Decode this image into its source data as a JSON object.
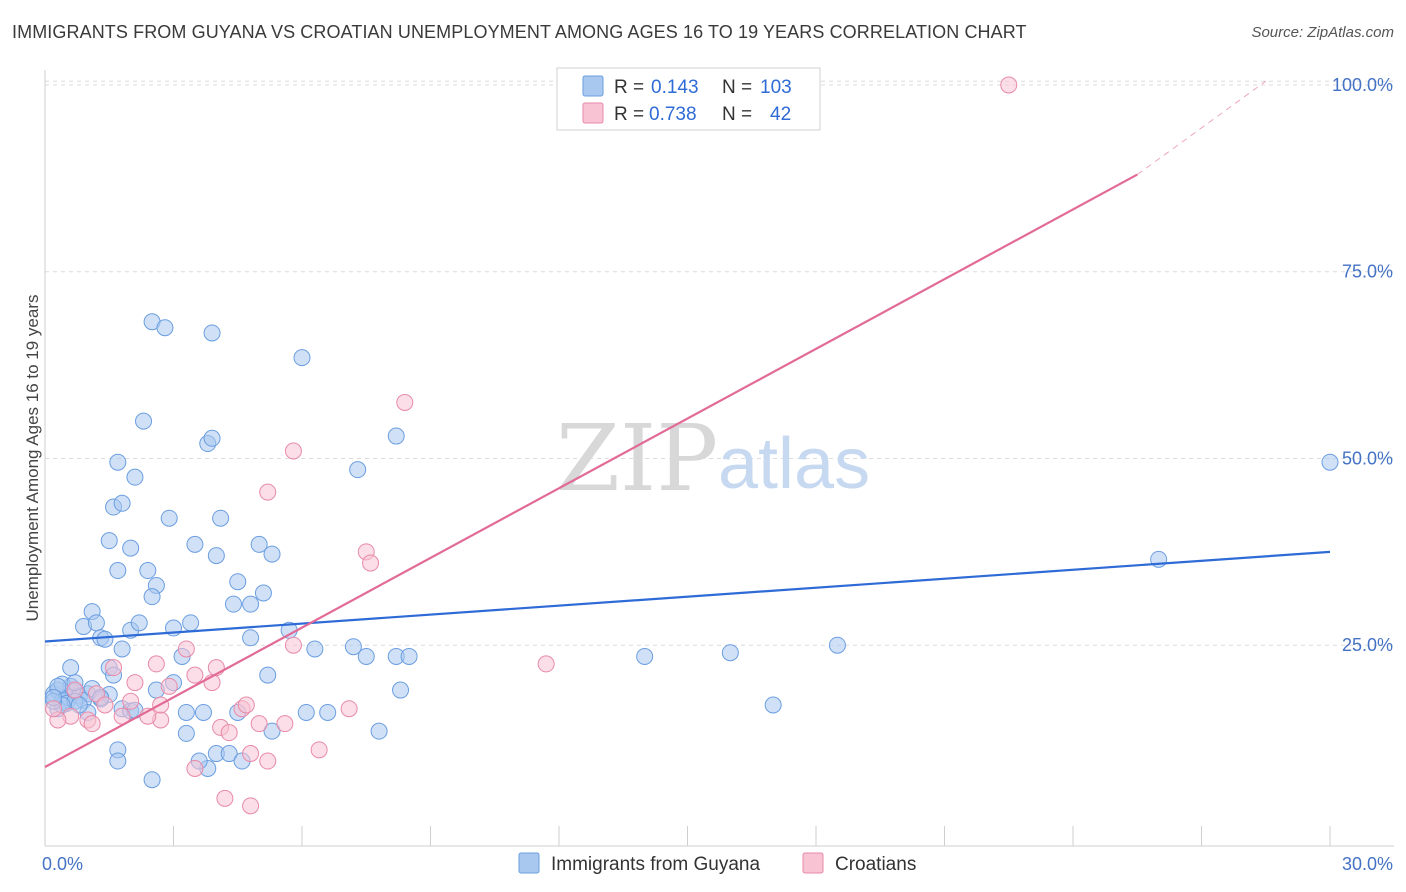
{
  "title": "IMMIGRANTS FROM GUYANA VS CROATIAN UNEMPLOYMENT AMONG AGES 16 TO 19 YEARS CORRELATION CHART",
  "source": "Source: ZipAtlas.com",
  "watermark": {
    "zip": "ZIP",
    "atlas": "atlas"
  },
  "legend": {
    "rows": [
      {
        "r_label": "R =",
        "r_value": "0.143",
        "n_label": "N =",
        "n_value": "103",
        "color": "#a9c8f0",
        "border": "#6b9ee0"
      },
      {
        "r_label": "R =",
        "r_value": "0.738",
        "n_label": "N =",
        "n_value": "42",
        "color": "#f8c3d3",
        "border": "#e88aa8"
      }
    ]
  },
  "bottom_legend": [
    "Immigrants from Guyana",
    "Croatians"
  ],
  "chart_data": {
    "type": "scatter",
    "title": "IMMIGRANTS FROM GUYANA VS CROATIAN UNEMPLOYMENT AMONG AGES 16 TO 19 YEARS CORRELATION CHART",
    "xlabel": "",
    "ylabel": "Unemployment Among Ages 16 to 19 years",
    "xlim": [
      0,
      30
    ],
    "ylim": [
      0,
      102
    ],
    "x_tick_labels": [
      {
        "value": 0,
        "label": "0.0%"
      },
      {
        "value": 30,
        "label": "30.0%"
      }
    ],
    "x_minor_ticks": [
      0,
      3,
      6,
      9,
      12,
      15,
      18,
      21,
      24,
      27,
      30
    ],
    "y_ticks": [
      {
        "value": 25,
        "label": "25.0%"
      },
      {
        "value": 50,
        "label": "50.0%"
      },
      {
        "value": 75,
        "label": "75.0%"
      },
      {
        "value": 100,
        "label": "100.0%"
      }
    ],
    "series": [
      {
        "name": "Immigrants from Guyana",
        "color": "#a9c8f0",
        "stroke": "#6b9ee0",
        "line_color": "#2e6bd6",
        "trend": {
          "x0": 0,
          "y0": 25.5,
          "x1": 30,
          "y1": 37.5
        },
        "points": [
          [
            0.2,
            18.5
          ],
          [
            0.3,
            19.0
          ],
          [
            0.4,
            17.5
          ],
          [
            0.5,
            18.0
          ],
          [
            0.3,
            16.5
          ],
          [
            0.6,
            19.5
          ],
          [
            0.7,
            18.8
          ],
          [
            0.5,
            17.2
          ],
          [
            0.4,
            19.8
          ],
          [
            0.8,
            18.2
          ],
          [
            1.0,
            18.5
          ],
          [
            0.9,
            17.6
          ],
          [
            0.7,
            20.0
          ],
          [
            1.1,
            19.2
          ],
          [
            1.3,
            17.8
          ],
          [
            1.5,
            18.4
          ],
          [
            0.6,
            22.0
          ],
          [
            0.9,
            27.5
          ],
          [
            1.1,
            29.5
          ],
          [
            1.2,
            28.0
          ],
          [
            1.3,
            26.0
          ],
          [
            1.4,
            25.8
          ],
          [
            1.5,
            22.0
          ],
          [
            1.6,
            21.0
          ],
          [
            1.8,
            24.5
          ],
          [
            2.0,
            27.0
          ],
          [
            2.2,
            28.0
          ],
          [
            1.7,
            35.0
          ],
          [
            1.5,
            39.0
          ],
          [
            2.0,
            38.0
          ],
          [
            1.6,
            43.5
          ],
          [
            1.8,
            44.0
          ],
          [
            2.1,
            47.5
          ],
          [
            1.7,
            49.5
          ],
          [
            2.3,
            55.0
          ],
          [
            2.5,
            68.3
          ],
          [
            2.8,
            67.5
          ],
          [
            2.9,
            42.0
          ],
          [
            2.4,
            35.0
          ],
          [
            2.6,
            33.0
          ],
          [
            2.5,
            31.5
          ],
          [
            3.0,
            27.3
          ],
          [
            3.2,
            23.5
          ],
          [
            3.0,
            20.0
          ],
          [
            2.6,
            19.0
          ],
          [
            3.4,
            28.0
          ],
          [
            3.5,
            38.5
          ],
          [
            3.8,
            52.0
          ],
          [
            3.9,
            52.7
          ],
          [
            4.0,
            37.0
          ],
          [
            4.1,
            42.0
          ],
          [
            3.9,
            66.8
          ],
          [
            4.5,
            33.5
          ],
          [
            4.4,
            30.5
          ],
          [
            4.8,
            30.5
          ],
          [
            5.0,
            38.5
          ],
          [
            5.1,
            32.0
          ],
          [
            5.3,
            37.2
          ],
          [
            4.8,
            26.0
          ],
          [
            5.2,
            21.0
          ],
          [
            5.7,
            27.0
          ],
          [
            6.0,
            63.5
          ],
          [
            6.3,
            24.5
          ],
          [
            7.2,
            24.8
          ],
          [
            7.5,
            23.5
          ],
          [
            8.2,
            23.5
          ],
          [
            8.5,
            23.5
          ],
          [
            7.3,
            48.5
          ],
          [
            8.2,
            53.0
          ],
          [
            8.3,
            19.0
          ],
          [
            4.5,
            16.0
          ],
          [
            4.0,
            10.5
          ],
          [
            4.3,
            10.5
          ],
          [
            4.6,
            9.5
          ],
          [
            3.8,
            8.5
          ],
          [
            3.6,
            9.5
          ],
          [
            3.3,
            16.0
          ],
          [
            3.3,
            13.2
          ],
          [
            3.7,
            16.0
          ],
          [
            5.3,
            13.5
          ],
          [
            6.1,
            16.0
          ],
          [
            6.6,
            16.0
          ],
          [
            7.8,
            13.5
          ],
          [
            2.5,
            7.0
          ],
          [
            1.7,
            11.0
          ],
          [
            1.7,
            9.5
          ],
          [
            1.8,
            16.5
          ],
          [
            2.0,
            16.2
          ],
          [
            1.0,
            16.0
          ],
          [
            0.7,
            17.5
          ],
          [
            0.4,
            17.0
          ],
          [
            0.2,
            17.5
          ],
          [
            0.3,
            19.5
          ],
          [
            1.3,
            18.0
          ],
          [
            0.8,
            17.0
          ],
          [
            0.2,
            18.0
          ],
          [
            14.0,
            23.5
          ],
          [
            16.0,
            24.0
          ],
          [
            17.0,
            17.0
          ],
          [
            18.5,
            25.0
          ],
          [
            26.0,
            36.5
          ],
          [
            30.0,
            49.5
          ],
          [
            2.1,
            16.3
          ]
        ]
      },
      {
        "name": "Croatians",
        "color": "#f8c3d3",
        "stroke": "#e88aa8",
        "line_color": "#e26a96",
        "trend": {
          "x0": 0,
          "y0": 8.7,
          "x1": 25.5,
          "y1": 88.0
        },
        "trend_dashed": {
          "x0": 25.5,
          "y0": 88.0,
          "x1": 28.5,
          "y1": 100.5
        },
        "points": [
          [
            22.5,
            100.0
          ],
          [
            8.4,
            57.5
          ],
          [
            5.8,
            51.0
          ],
          [
            5.2,
            45.5
          ],
          [
            7.5,
            37.5
          ],
          [
            7.6,
            36.0
          ],
          [
            5.8,
            25.0
          ],
          [
            3.3,
            24.5
          ],
          [
            2.6,
            22.5
          ],
          [
            1.6,
            22.0
          ],
          [
            2.1,
            20.0
          ],
          [
            3.5,
            21.0
          ],
          [
            3.9,
            20.0
          ],
          [
            4.0,
            22.0
          ],
          [
            4.1,
            14.0
          ],
          [
            4.3,
            13.3
          ],
          [
            4.6,
            16.5
          ],
          [
            4.7,
            17.0
          ],
          [
            5.0,
            14.5
          ],
          [
            5.6,
            14.5
          ],
          [
            6.4,
            11.0
          ],
          [
            7.1,
            16.5
          ],
          [
            11.7,
            22.5
          ],
          [
            4.2,
            4.5
          ],
          [
            4.8,
            3.5
          ],
          [
            4.8,
            10.5
          ],
          [
            5.2,
            9.5
          ],
          [
            3.5,
            8.5
          ],
          [
            2.7,
            15.0
          ],
          [
            2.4,
            15.5
          ],
          [
            1.2,
            18.5
          ],
          [
            1.8,
            15.5
          ],
          [
            1.4,
            17.0
          ],
          [
            0.6,
            15.5
          ],
          [
            0.3,
            15.0
          ],
          [
            0.2,
            16.5
          ],
          [
            0.7,
            19.0
          ],
          [
            1.0,
            15.0
          ],
          [
            1.1,
            14.5
          ],
          [
            2.0,
            17.5
          ],
          [
            2.7,
            17.0
          ],
          [
            2.9,
            19.5
          ]
        ]
      }
    ]
  }
}
